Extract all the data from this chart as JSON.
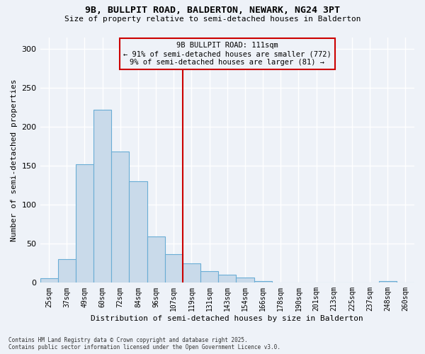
{
  "title1": "9B, BULLPIT ROAD, BALDERTON, NEWARK, NG24 3PT",
  "title2": "Size of property relative to semi-detached houses in Balderton",
  "xlabel": "Distribution of semi-detached houses by size in Balderton",
  "ylabel": "Number of semi-detached properties",
  "categories": [
    "25sqm",
    "37sqm",
    "49sqm",
    "60sqm",
    "72sqm",
    "84sqm",
    "96sqm",
    "107sqm",
    "119sqm",
    "131sqm",
    "143sqm",
    "154sqm",
    "166sqm",
    "178sqm",
    "190sqm",
    "201sqm",
    "213sqm",
    "225sqm",
    "237sqm",
    "248sqm",
    "260sqm"
  ],
  "values": [
    6,
    30,
    152,
    222,
    168,
    130,
    59,
    37,
    25,
    15,
    10,
    7,
    2,
    0,
    0,
    0,
    0,
    0,
    0,
    2,
    0
  ],
  "bar_color": "#c9daea",
  "bar_edge_color": "#6aadd5",
  "vline_index": 7.5,
  "vline_color": "#cc0000",
  "annotation_title": "9B BULLPIT ROAD: 111sqm",
  "annotation_line1": "← 91% of semi-detached houses are smaller (772)",
  "annotation_line2": "9% of semi-detached houses are larger (81) →",
  "annotation_box_color": "#cc0000",
  "footnote1": "Contains HM Land Registry data © Crown copyright and database right 2025.",
  "footnote2": "Contains public sector information licensed under the Open Government Licence v3.0.",
  "ylim": [
    0,
    315
  ],
  "yticks": [
    0,
    50,
    100,
    150,
    200,
    250,
    300
  ],
  "background_color": "#eef2f8",
  "grid_color": "#ffffff"
}
